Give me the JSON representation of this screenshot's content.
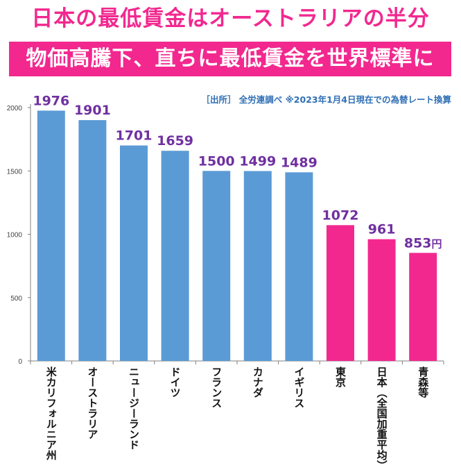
{
  "title": "日本の最低賃金はオーストラリアの半分",
  "subtitle": "物価高騰下、直ちに最低賃金を世界標準に",
  "source": "［出所］ 全労連調べ ※2023年1月4日現在での為替レート換算",
  "colors": {
    "pink": "#f2288f",
    "blue": "#5b9bd5",
    "value_label": "#7030a0",
    "axis": "#808080"
  },
  "chart_data": {
    "type": "bar",
    "title": "日本の最低賃金はオーストラリアの半分",
    "unit": "円",
    "categories": [
      "米カリフォルニア州",
      "オーストラリア",
      "ニュージーランド",
      "ドイツ",
      "フランス",
      "カナダ",
      "イギリス",
      "東京",
      "日本（全国加重平均）",
      "青森等"
    ],
    "values": [
      1976,
      1901,
      1701,
      1659,
      1500,
      1499,
      1489,
      1072,
      961,
      853
    ],
    "value_labels": [
      "1976",
      "1901",
      "1701",
      "1659",
      "1500",
      "1499",
      "1489",
      "1072",
      "961",
      "853"
    ],
    "bar_colors": [
      "#5b9bd5",
      "#5b9bd5",
      "#5b9bd5",
      "#5b9bd5",
      "#5b9bd5",
      "#5b9bd5",
      "#5b9bd5",
      "#f2288f",
      "#f2288f",
      "#f2288f"
    ],
    "y_ticks": [
      0,
      500,
      1000,
      1500,
      2000
    ],
    "ylim": [
      0,
      2000
    ],
    "xlabel": "",
    "ylabel": "",
    "grid": false
  }
}
